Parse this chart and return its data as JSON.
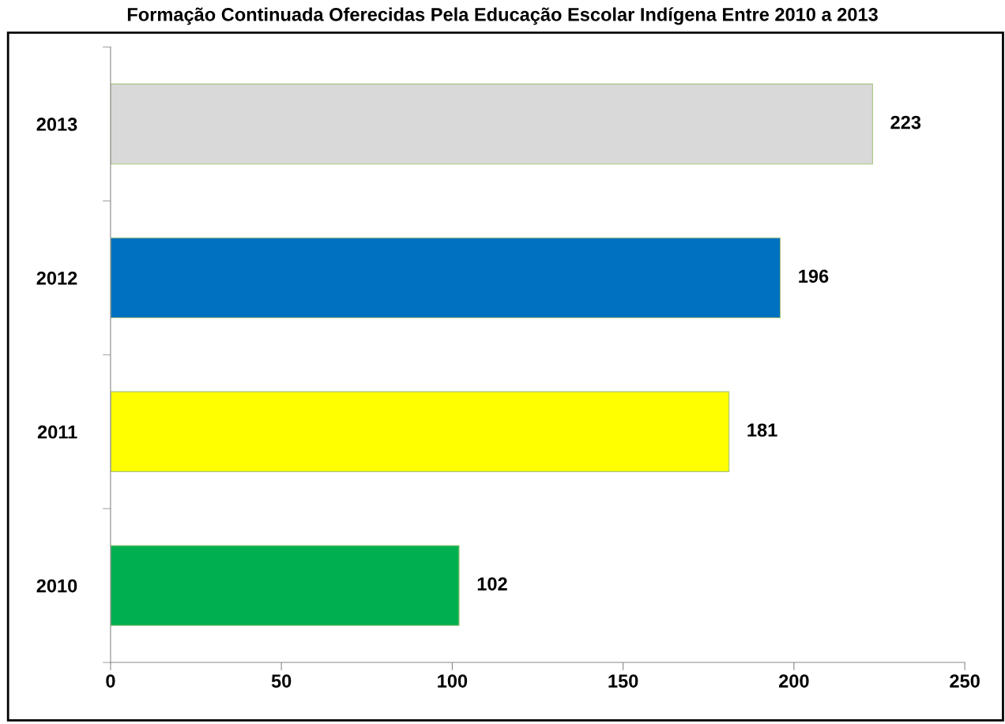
{
  "chart_data": {
    "type": "bar",
    "orientation": "horizontal",
    "title": "Formação Continuada Oferecidas Pela Educação Escolar Indígena Entre 2010 a 2013",
    "categories": [
      "2013",
      "2012",
      "2011",
      "2010"
    ],
    "values": [
      223,
      196,
      181,
      102
    ],
    "colors": [
      "#d9d9d9",
      "#0070c0",
      "#ffff00",
      "#00b050"
    ],
    "xlim": [
      0,
      250
    ],
    "xticks": [
      0,
      50,
      100,
      150,
      200,
      250
    ],
    "grid": false,
    "data_labels": true
  }
}
